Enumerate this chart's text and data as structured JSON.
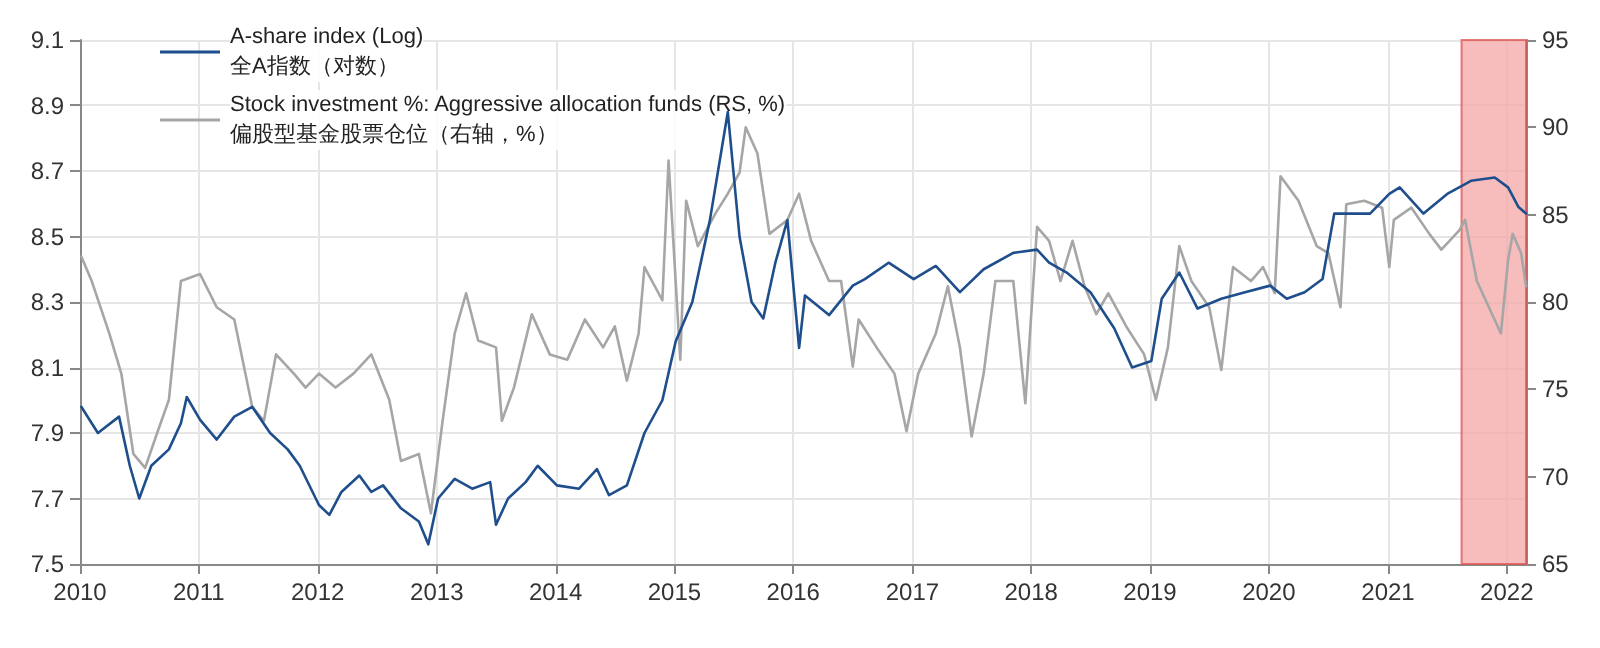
{
  "chart_data": {
    "type": "line",
    "xlim": [
      "2010-01-01",
      "2022-03-01"
    ],
    "xticks": [
      {
        "value": "2010",
        "label": "2010"
      },
      {
        "value": "2011",
        "label": "2011"
      },
      {
        "value": "2012",
        "label": "2012"
      },
      {
        "value": "2013",
        "label": "2013"
      },
      {
        "value": "2014",
        "label": "2014"
      },
      {
        "value": "2015",
        "label": "2015"
      },
      {
        "value": "2016",
        "label": "2016"
      },
      {
        "value": "2017",
        "label": "2017"
      },
      {
        "value": "2018",
        "label": "2018"
      },
      {
        "value": "2019",
        "label": "2019"
      },
      {
        "value": "2020",
        "label": "2020"
      },
      {
        "value": "2021",
        "label": "2021"
      },
      {
        "value": "2022",
        "label": "2022"
      }
    ],
    "ylim": [
      7.5,
      9.1
    ],
    "yticks": [
      7.5,
      7.7,
      7.9,
      8.1,
      8.3,
      8.5,
      8.7,
      8.9,
      9.1
    ],
    "y2lim": [
      65,
      95
    ],
    "y2ticks": [
      65,
      70,
      75,
      80,
      85,
      90,
      95
    ],
    "grid": true,
    "legend": "top left",
    "marker": "none",
    "line_style": "solid",
    "bands": [
      {
        "axis": "x",
        "from": "2021-08-15",
        "to": "2022-03-01",
        "color": "#f4a6a6"
      }
    ],
    "series": [
      {
        "name": "A-share index (Log)\n全A指数（对数）",
        "color": "#1f4e8c",
        "x": [
          "2010-01-05",
          "2010-02-25",
          "2010-05-01",
          "2010-06-03",
          "2010-07-02",
          "2010-08-08",
          "2010-10-01",
          "2010-11-07",
          "2010-11-25",
          "2011-01-05",
          "2011-02-25",
          "2011-04-20",
          "2011-06-14",
          "2011-08-08",
          "2011-10-01",
          "2011-11-07",
          "2012-01-05",
          "2012-02-06",
          "2012-03-14",
          "2012-05-08",
          "2012-06-14",
          "2012-07-20",
          "2012-09-13",
          "2012-11-07",
          "2012-12-06",
          "2013-01-05",
          "2013-02-25",
          "2013-04-20",
          "2013-06-14",
          "2013-07-02",
          "2013-08-08",
          "2013-10-01",
          "2013-11-07",
          "2014-01-05",
          "2014-03-14",
          "2014-05-08",
          "2014-06-14",
          "2014-08-08",
          "2014-10-01",
          "2014-11-25",
          "2015-01-05",
          "2015-02-25",
          "2015-04-20",
          "2015-06-14",
          "2015-07-20",
          "2015-08-26",
          "2015-10-01",
          "2015-11-07",
          "2015-12-14",
          "2016-01-19",
          "2016-02-06",
          "2016-04-20",
          "2016-07-02",
          "2016-08-08",
          "2016-10-20",
          "2017-01-05",
          "2017-03-14",
          "2017-05-27",
          "2017-08-08",
          "2017-11-07",
          "2018-01-19",
          "2018-02-25",
          "2018-04-20",
          "2018-07-02",
          "2018-09-13",
          "2018-11-07",
          "2019-01-05",
          "2019-02-06",
          "2019-04-01",
          "2019-05-27",
          "2019-08-08",
          "2019-10-20",
          "2020-01-05",
          "2020-02-25",
          "2020-04-20",
          "2020-06-14",
          "2020-07-20",
          "2020-09-13",
          "2020-11-07",
          "2021-01-05",
          "2021-02-06",
          "2021-04-20",
          "2021-07-02",
          "2021-09-13",
          "2021-11-25",
          "2022-01-05",
          "2022-02-06",
          "2022-03-01"
        ],
        "values": [
          7.98,
          7.9,
          7.95,
          7.8,
          7.7,
          7.8,
          7.85,
          7.93,
          8.01,
          7.94,
          7.88,
          7.95,
          7.98,
          7.9,
          7.85,
          7.8,
          7.68,
          7.65,
          7.72,
          7.77,
          7.72,
          7.74,
          7.67,
          7.63,
          7.56,
          7.7,
          7.76,
          7.73,
          7.75,
          7.62,
          7.7,
          7.75,
          7.8,
          7.74,
          7.73,
          7.79,
          7.71,
          7.74,
          7.9,
          8.0,
          8.18,
          8.3,
          8.55,
          8.88,
          8.5,
          8.3,
          8.25,
          8.42,
          8.55,
          8.16,
          8.32,
          8.26,
          8.35,
          8.37,
          8.42,
          8.37,
          8.41,
          8.33,
          8.4,
          8.45,
          8.46,
          8.42,
          8.39,
          8.33,
          8.22,
          8.1,
          8.12,
          8.31,
          8.39,
          8.28,
          8.31,
          8.33,
          8.35,
          8.31,
          8.33,
          8.37,
          8.57,
          8.57,
          8.57,
          8.63,
          8.65,
          8.57,
          8.63,
          8.67,
          8.68,
          8.65,
          8.59,
          8.57
        ]
      },
      {
        "name": "Stock investment %: Aggressive allocation funds (RS, %)\n偏股型基金股票仓位（右轴，%）",
        "color": "#a6a6a6",
        "axis": "y2",
        "x": [
          "2010-01-05",
          "2010-02-06",
          "2010-04-01",
          "2010-05-08",
          "2010-06-14",
          "2010-07-20",
          "2010-08-26",
          "2010-10-01",
          "2010-11-07",
          "2011-01-05",
          "2011-02-25",
          "2011-04-20",
          "2011-06-14",
          "2011-07-20",
          "2011-08-26",
          "2011-10-20",
          "2011-11-25",
          "2012-01-05",
          "2012-02-25",
          "2012-04-20",
          "2012-06-14",
          "2012-08-08",
          "2012-09-13",
          "2012-11-07",
          "2012-12-14",
          "2013-01-19",
          "2013-02-25",
          "2013-04-01",
          "2013-05-08",
          "2013-07-02",
          "2013-07-20",
          "2013-08-26",
          "2013-10-20",
          "2013-12-14",
          "2014-02-06",
          "2014-04-01",
          "2014-05-27",
          "2014-07-02",
          "2014-08-08",
          "2014-09-13",
          "2014-10-01",
          "2014-11-25",
          "2014-12-14",
          "2015-01-19",
          "2015-02-06",
          "2015-03-14",
          "2015-05-08",
          "2015-06-14",
          "2015-07-20",
          "2015-08-08",
          "2015-09-13",
          "2015-10-20",
          "2015-12-14",
          "2016-01-19",
          "2016-02-25",
          "2016-04-20",
          "2016-05-27",
          "2016-07-02",
          "2016-07-20",
          "2016-09-13",
          "2016-11-07",
          "2016-12-14",
          "2017-01-19",
          "2017-03-14",
          "2017-04-20",
          "2017-05-27",
          "2017-07-02",
          "2017-08-08",
          "2017-09-13",
          "2017-11-07",
          "2017-12-14",
          "2018-01-19",
          "2018-02-25",
          "2018-04-01",
          "2018-05-08",
          "2018-06-14",
          "2018-07-20",
          "2018-08-26",
          "2018-10-20",
          "2018-12-14",
          "2019-01-19",
          "2019-02-25",
          "2019-04-01",
          "2019-05-08",
          "2019-07-02",
          "2019-08-08",
          "2019-09-13",
          "2019-11-07",
          "2019-12-14",
          "2020-01-19",
          "2020-02-06",
          "2020-04-01",
          "2020-05-27",
          "2020-07-02",
          "2020-08-08",
          "2020-08-26",
          "2020-10-20",
          "2020-12-14",
          "2021-01-05",
          "2021-01-19",
          "2021-03-14",
          "2021-05-08",
          "2021-06-14",
          "2021-08-08",
          "2021-08-26",
          "2021-10-01",
          "2021-11-07",
          "2021-12-14",
          "2022-01-05",
          "2022-01-19",
          "2022-02-14",
          "2022-03-01"
        ],
        "values": [
          82.6,
          81.2,
          78.2,
          75.9,
          71.3,
          70.5,
          72.5,
          74.4,
          81.2,
          81.6,
          79.7,
          79.0,
          74.0,
          73.2,
          77.0,
          75.9,
          75.1,
          75.9,
          75.1,
          75.9,
          77.0,
          74.4,
          70.9,
          71.3,
          67.9,
          73.2,
          78.2,
          80.5,
          77.8,
          77.4,
          73.2,
          75.1,
          79.3,
          77.0,
          76.7,
          79.0,
          77.4,
          78.6,
          75.5,
          78.2,
          82.0,
          80.1,
          88.1,
          76.7,
          85.8,
          83.2,
          85.1,
          86.2,
          87.4,
          90.0,
          88.5,
          83.9,
          84.7,
          86.2,
          83.5,
          81.2,
          81.2,
          76.3,
          79.0,
          77.4,
          75.9,
          72.6,
          75.9,
          78.2,
          80.9,
          77.4,
          72.3,
          75.9,
          81.2,
          81.2,
          74.2,
          84.3,
          83.5,
          81.2,
          83.5,
          80.9,
          79.3,
          80.5,
          78.6,
          77.0,
          74.4,
          77.4,
          83.2,
          81.2,
          79.7,
          76.1,
          82.0,
          81.2,
          82.0,
          80.5,
          87.2,
          85.8,
          83.2,
          82.8,
          79.7,
          85.6,
          85.8,
          85.4,
          82.0,
          84.7,
          85.4,
          83.9,
          83.0,
          84.1,
          84.7,
          81.2,
          79.7,
          78.2,
          82.4,
          83.9,
          82.8,
          80.9
        ]
      }
    ]
  }
}
